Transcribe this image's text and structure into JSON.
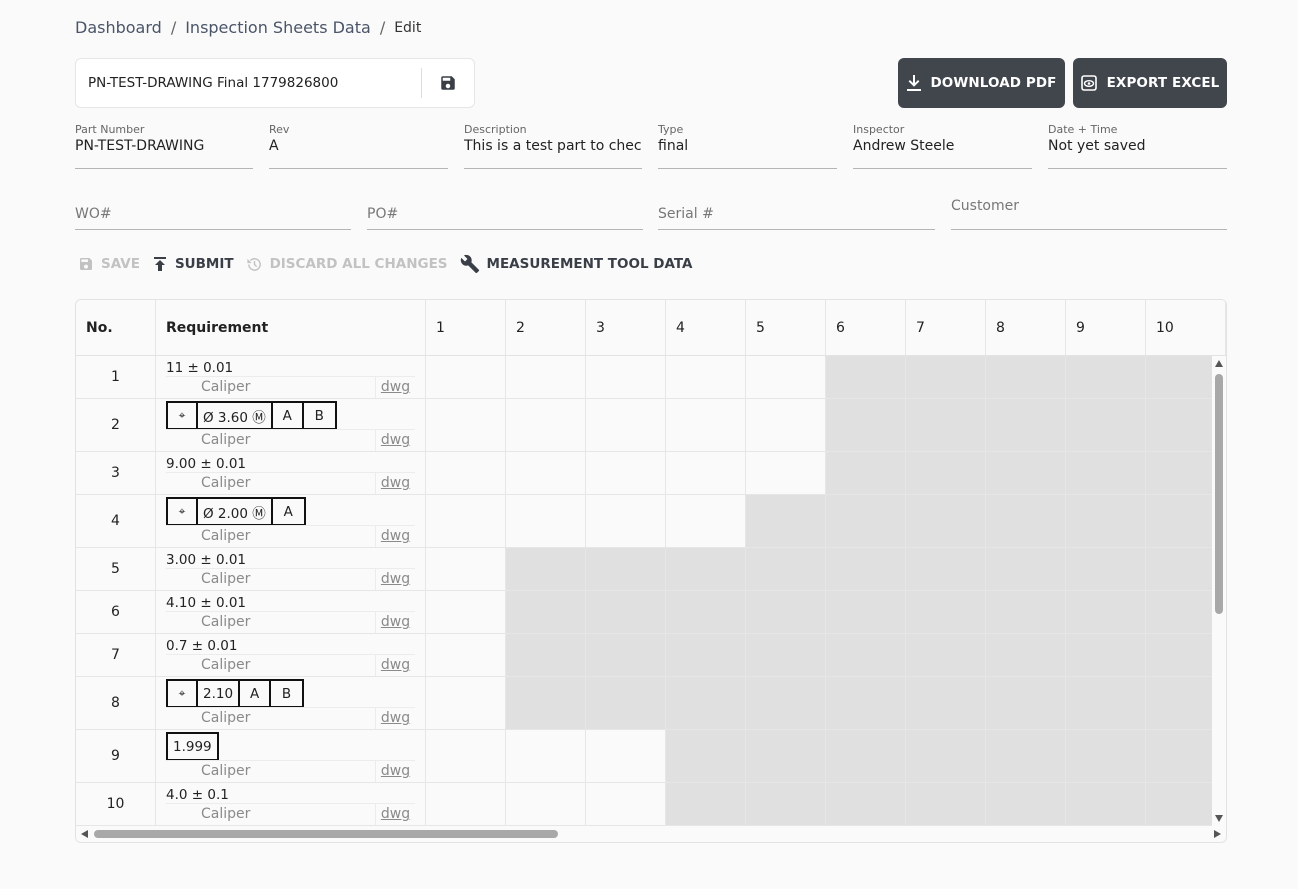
{
  "breadcrumb": {
    "items": [
      "Dashboard",
      "Inspection Sheets Data"
    ],
    "separator": "/",
    "current": "Edit"
  },
  "sheet": {
    "title": "PN-TEST-DRAWING Final 1779826800",
    "save_icon": "floppy-disk-icon"
  },
  "header_actions": {
    "download_pdf": "DOWNLOAD PDF",
    "export_excel": "EXPORT EXCEL"
  },
  "fields": {
    "part_number": {
      "label": "Part Number",
      "value": "PN-TEST-DRAWING"
    },
    "rev": {
      "label": "Rev",
      "value": "A"
    },
    "description": {
      "label": "Description",
      "value": "This is a test part to check"
    },
    "type": {
      "label": "Type",
      "value": "final"
    },
    "inspector": {
      "label": "Inspector",
      "value": "Andrew Steele"
    },
    "date_time": {
      "label": "Date + Time",
      "value": "Not yet saved"
    },
    "wo": {
      "placeholder": "WO#"
    },
    "po": {
      "placeholder": "PO#"
    },
    "serial": {
      "placeholder": "Serial #"
    },
    "customer": {
      "placeholder": "Customer"
    }
  },
  "toolbar": {
    "save": "SAVE",
    "submit": "SUBMIT",
    "discard": "DISCARD ALL CHANGES",
    "measurement": "MEASUREMENT TOOL DATA"
  },
  "grid": {
    "headers": {
      "no": "No.",
      "requirement": "Requirement",
      "columns": [
        "1",
        "2",
        "3",
        "4",
        "5",
        "6",
        "7",
        "8",
        "9",
        "10"
      ]
    },
    "rows": [
      {
        "no": "1",
        "req": "11 ± 0.01",
        "tool": "Caliper",
        "dwg": "dwg",
        "enabled_cols": 5
      },
      {
        "no": "2",
        "fcf": [
          "⌖",
          "Ø 3.60 Ⓜ",
          "A",
          "B"
        ],
        "tool": "Caliper",
        "dwg": "dwg",
        "enabled_cols": 5
      },
      {
        "no": "3",
        "req": "9.00 ± 0.01",
        "tool": "Caliper",
        "dwg": "dwg",
        "enabled_cols": 5
      },
      {
        "no": "4",
        "fcf": [
          "⌖",
          "Ø 2.00 Ⓜ",
          "A"
        ],
        "tool": "Caliper",
        "dwg": "dwg",
        "enabled_cols": 4
      },
      {
        "no": "5",
        "req": "3.00 ± 0.01",
        "tool": "Caliper",
        "dwg": "dwg",
        "enabled_cols": 1
      },
      {
        "no": "6",
        "req": "4.10 ± 0.01",
        "tool": "Caliper",
        "dwg": "dwg",
        "enabled_cols": 1
      },
      {
        "no": "7",
        "req": "0.7 ± 0.01",
        "tool": "Caliper",
        "dwg": "dwg",
        "enabled_cols": 1
      },
      {
        "no": "8",
        "fcf": [
          "⌖",
          "2.10",
          "A",
          "B"
        ],
        "tool": "Caliper",
        "dwg": "dwg",
        "enabled_cols": 1
      },
      {
        "no": "9",
        "fcf": [
          "1.999"
        ],
        "tool": "Caliper",
        "dwg": "dwg",
        "enabled_cols": 3
      },
      {
        "no": "10",
        "req": "4.0 ± 0.1",
        "tool": "Caliper",
        "dwg": "dwg",
        "enabled_cols": 3
      }
    ]
  },
  "colors": {
    "button_bg": "#41454c",
    "disabled_cell": "#e0e0e0",
    "disabled_text": "#c2c2c2"
  }
}
